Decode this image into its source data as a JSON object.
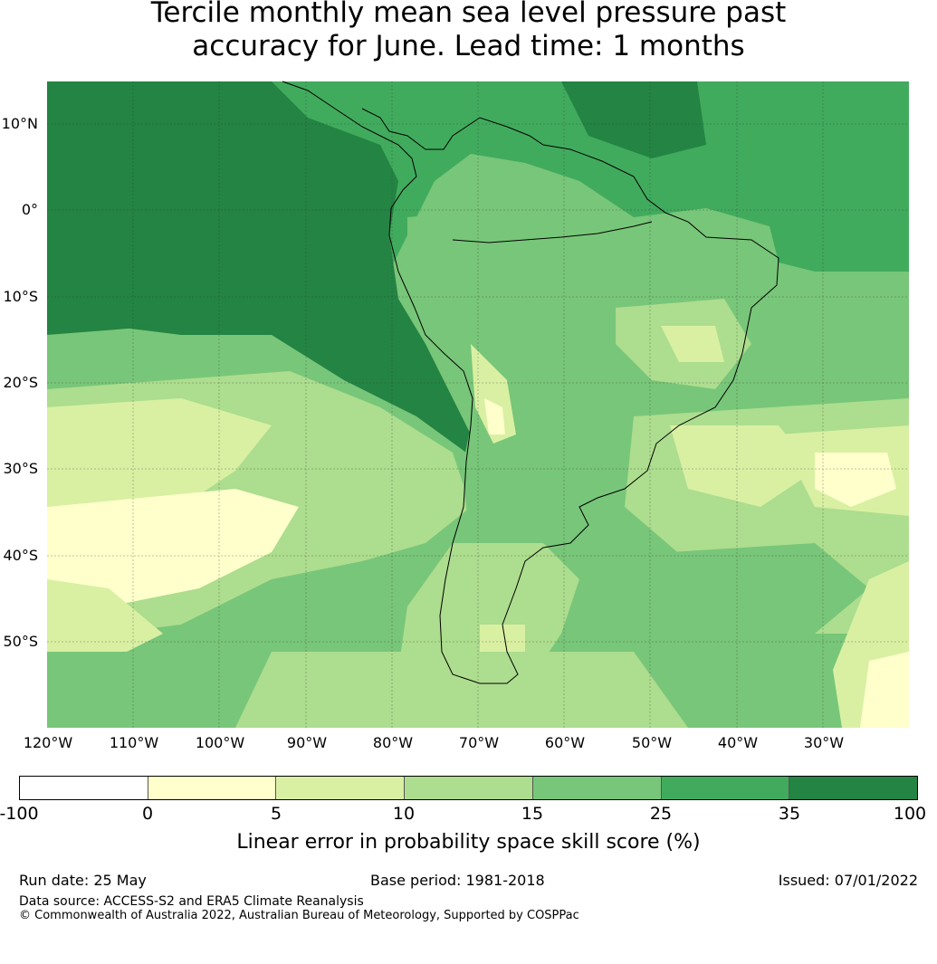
{
  "title": {
    "line1": "Tercile monthly mean sea level pressure past",
    "line2": "accuracy for June. Lead time: 1 months"
  },
  "map": {
    "lat_labels": [
      "10°N",
      "0°",
      "10°S",
      "20°S",
      "30°S",
      "40°S",
      "50°S"
    ],
    "lon_labels": [
      "120°W",
      "110°W",
      "100°W",
      "90°W",
      "80°W",
      "70°W",
      "60°W",
      "50°W",
      "40°W",
      "30°W"
    ],
    "extent": {
      "lon": [
        -120,
        -20
      ],
      "lat": [
        -60,
        15
      ]
    },
    "gridlines": true,
    "region": "South America"
  },
  "colorbar": {
    "ticks": [
      "-100",
      "0",
      "5",
      "10",
      "15",
      "25",
      "35",
      "100"
    ],
    "colors": [
      "#ffffff",
      "#ffffcc",
      "#d9f0a3",
      "#addd8e",
      "#78c679",
      "#41ab5d",
      "#238443"
    ],
    "label": "Linear error in probability space skill score (%)"
  },
  "footer": {
    "run_date": "Run date: 25 May",
    "base_period": "Base period: 1981-2018",
    "issued": "Issued: 07/01/2022",
    "data_source": "Data source: ACCESS-S2 and ERA5 Climate Reanalysis",
    "copyright": "© Commonwealth of Australia 2022, Australian Bureau of Meteorology, Supported by COSPPac"
  }
}
